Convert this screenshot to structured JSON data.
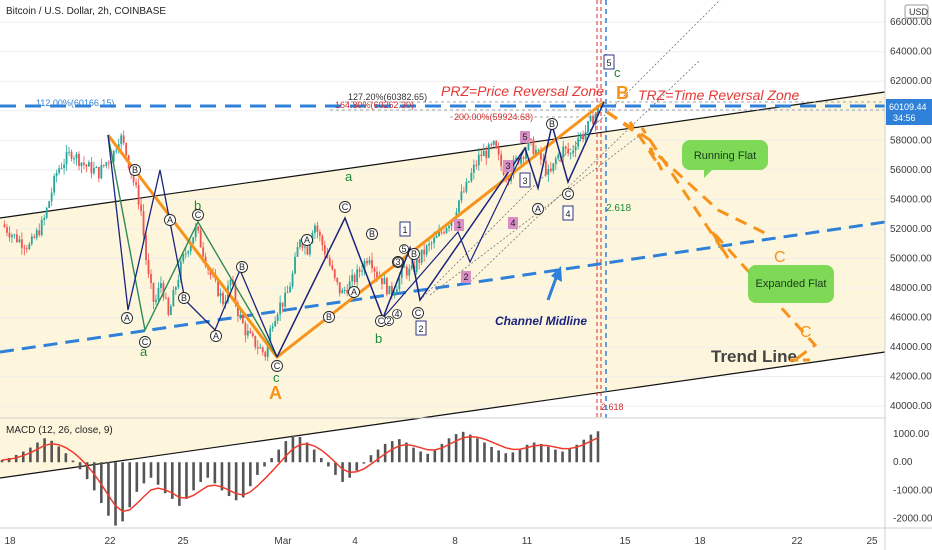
{
  "header": {
    "title": "Bitcoin / U.S. Dollar, 2h, COINBASE",
    "currency": "USD",
    "last_price": "60109.44",
    "countdown": "34:56"
  },
  "colors": {
    "up": "#26a69a",
    "down": "#ef5350",
    "orange": "#f7931a",
    "blue_dash": "#2f80d8",
    "navy": "#1a237e",
    "red_text": "#e53935",
    "green_text": "#1b8a3a",
    "channel_fill": "#fdf6dc",
    "bubble_fill": "#7ed957",
    "macd_line": "#ef3b2c",
    "histogram": "#555555"
  },
  "annotations": {
    "prz": "PRZ=Price Reversal Zone",
    "trz": "TRZ=Time Reversal Zone",
    "running_flat": "Running Flat",
    "expanded_flat": "Expanded Flat",
    "channel_midline": "Channel Midline",
    "trend_line": "Trend Line",
    "fib_112": "112.00%(60166.15)",
    "fib_127": "127.20%(60382.65)",
    "fib_164": "164.80%(60262.30)",
    "fib_200": "200.00%(59924.68)",
    "fib_2618_a": "2.618",
    "fib_2618_b": "2.618"
  },
  "macd": {
    "label": "MACD (12, 26, close, 9)"
  },
  "wave_labels": {
    "A_big": "A",
    "B_big": "B",
    "C_proj_1": "C",
    "C_proj_2": "C",
    "green_a1": "a",
    "green_a2": "a",
    "green_b1": "b",
    "green_b2": "b",
    "green_c1": "c",
    "green_c2": "c",
    "circ_A": "A",
    "circ_B": "B",
    "circ_C": "C",
    "box_1": "1",
    "box_2": "2",
    "box_3": "3",
    "box_4": "4",
    "box_5": "5",
    "pink_1": "1",
    "pink_2": "2",
    "pink_3": "3",
    "pink_4": "4",
    "pink_5": "5",
    "small_1": "1",
    "small_2": "2",
    "small_3": "3",
    "small_4": "4",
    "small_5": "5"
  },
  "chart_data": {
    "type": "candlestick",
    "title": "Bitcoin / U.S. Dollar, 2h, COINBASE",
    "y_axis": {
      "ticks": [
        40000,
        42000,
        44000,
        46000,
        48000,
        50000,
        52000,
        54000,
        56000,
        58000,
        60000,
        62000,
        64000,
        66000
      ],
      "tick_labels": [
        "40000.00",
        "42000.00",
        "44000.00",
        "46000.00",
        "48000.00",
        "50000.00",
        "52000.00",
        "54000.00",
        "56000.00",
        "58000.00",
        "60000.00",
        "62000.00",
        "64000.00",
        "66000.00"
      ],
      "range": [
        39200,
        67500
      ]
    },
    "x_axis": {
      "tick_labels": [
        "18",
        "22",
        "25",
        "Mar",
        "4",
        "8",
        "11",
        "15",
        "18",
        "22",
        "25"
      ],
      "note": "Feb 18 – Mar 25; price data ends around Mar 14"
    },
    "price_path": [
      [
        0,
        52300
      ],
      [
        2,
        51400
      ],
      [
        4,
        50800
      ],
      [
        6,
        52500
      ],
      [
        8,
        56000
      ],
      [
        10,
        57200
      ],
      [
        12,
        56300
      ],
      [
        14,
        55800
      ],
      [
        15,
        56500
      ],
      [
        16,
        57000
      ],
      [
        17,
        58400
      ],
      [
        18,
        57000
      ],
      [
        19,
        55200
      ],
      [
        20,
        53500
      ],
      [
        21,
        49000
      ],
      [
        22,
        46800
      ],
      [
        23,
        48500
      ],
      [
        24,
        46000
      ],
      [
        25,
        48000
      ],
      [
        26,
        49800
      ],
      [
        27,
        51000
      ],
      [
        28,
        52000
      ],
      [
        29,
        50500
      ],
      [
        30,
        49000
      ],
      [
        31,
        48000
      ],
      [
        32,
        47000
      ],
      [
        33,
        48500
      ],
      [
        34,
        46500
      ],
      [
        35,
        45200
      ],
      [
        36,
        44500
      ],
      [
        37,
        44000
      ],
      [
        38,
        43500
      ],
      [
        39,
        45800
      ],
      [
        40,
        46800
      ],
      [
        41,
        47300
      ],
      [
        42,
        49000
      ],
      [
        43,
        51500
      ],
      [
        44,
        50500
      ],
      [
        45,
        52500
      ],
      [
        46,
        51200
      ],
      [
        47,
        50000
      ],
      [
        48,
        48500
      ],
      [
        49,
        47600
      ],
      [
        50,
        48200
      ],
      [
        51,
        48700
      ],
      [
        52,
        49500
      ],
      [
        53,
        50300
      ],
      [
        54,
        49000
      ],
      [
        55,
        48500
      ],
      [
        56,
        47600
      ],
      [
        57,
        48300
      ],
      [
        58,
        49300
      ],
      [
        59,
        49000
      ],
      [
        60,
        49800
      ],
      [
        61,
        50500
      ],
      [
        62,
        51000
      ],
      [
        63,
        51500
      ],
      [
        64,
        52200
      ],
      [
        65,
        52800
      ],
      [
        66,
        54000
      ],
      [
        67,
        54800
      ],
      [
        68,
        56000
      ],
      [
        69,
        57000
      ],
      [
        70,
        57200
      ],
      [
        71,
        57600
      ],
      [
        72,
        56300
      ],
      [
        73,
        55600
      ],
      [
        74,
        56500
      ],
      [
        75,
        57000
      ],
      [
        76,
        57800
      ],
      [
        77,
        57300
      ],
      [
        78,
        56500
      ],
      [
        79,
        55500
      ],
      [
        80,
        56800
      ],
      [
        81,
        57400
      ],
      [
        82,
        57000
      ],
      [
        83,
        58200
      ],
      [
        84,
        58400
      ],
      [
        85,
        59300
      ],
      [
        86,
        60100
      ]
    ],
    "price_x_range": [
      0,
      86
    ],
    "macd_hist": [
      80,
      150,
      260,
      380,
      520,
      700,
      850,
      760,
      560,
      320,
      60,
      -250,
      -600,
      -1000,
      -1450,
      -1900,
      -2250,
      -2100,
      -1600,
      -1050,
      -750,
      -550,
      -800,
      -1100,
      -1300,
      -1550,
      -1300,
      -1000,
      -700,
      -550,
      -750,
      -1000,
      -1200,
      -1350,
      -1250,
      -850,
      -450,
      -150,
      150,
      450,
      750,
      950,
      900,
      700,
      450,
      150,
      -150,
      -450,
      -700,
      -550,
      -300,
      -50,
      250,
      450,
      650,
      750,
      820,
      700,
      520,
      380,
      300,
      420,
      650,
      850,
      1000,
      1080,
      980,
      850,
      700,
      540,
      420,
      320,
      350,
      480,
      620,
      700,
      650,
      550,
      450,
      380,
      500,
      620,
      800,
      980,
      1100
    ],
    "macd_ticks": [
      -2000,
      -1000,
      0,
      1000
    ],
    "macd_tick_labels": [
      "-2000.00",
      "-1000.00",
      "0.00",
      "1000.00"
    ],
    "macd_range": [
      -2300,
      1500
    ]
  }
}
